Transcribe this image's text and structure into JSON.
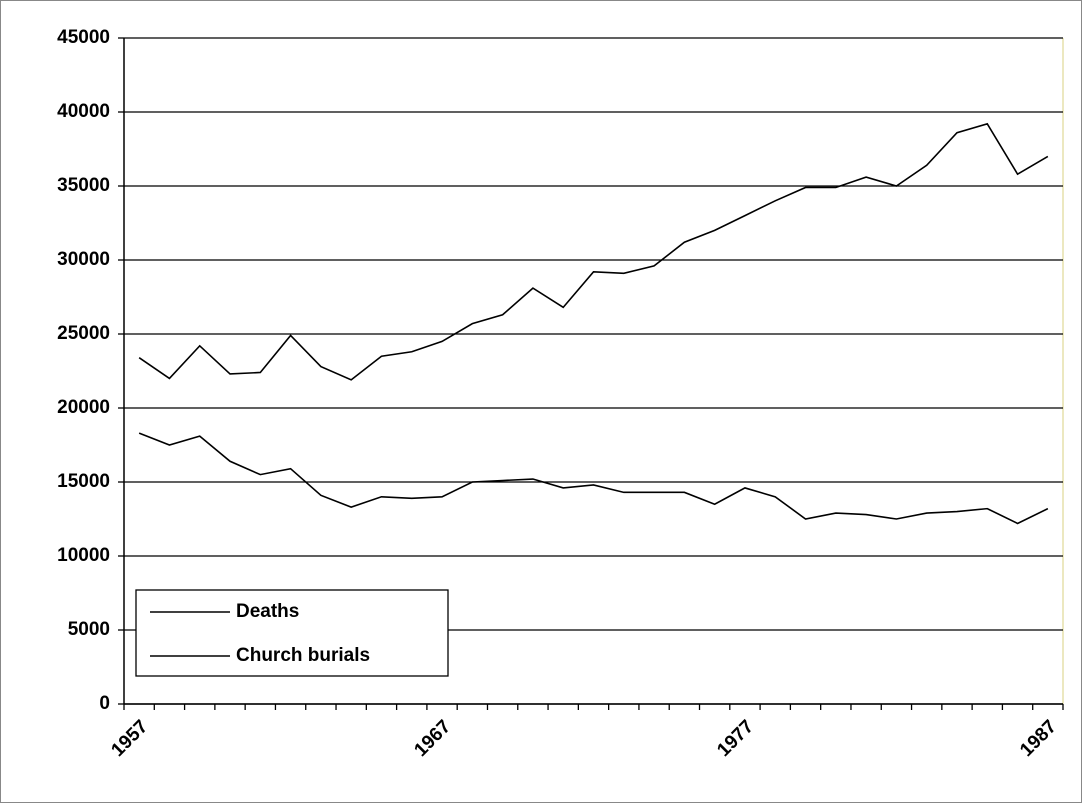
{
  "chart_data": {
    "type": "line",
    "categories": [
      "1957",
      null,
      null,
      null,
      null,
      null,
      null,
      null,
      null,
      null,
      "1967",
      null,
      null,
      null,
      null,
      null,
      null,
      null,
      null,
      null,
      "1977",
      null,
      null,
      null,
      null,
      null,
      null,
      null,
      null,
      null,
      "1987"
    ],
    "series": [
      {
        "name": "Deaths",
        "color": "#000000",
        "values": [
          23400,
          22000,
          24200,
          22300,
          22400,
          24900,
          22800,
          21900,
          23500,
          23800,
          24500,
          25700,
          26300,
          28100,
          26800,
          29200,
          29100,
          29600,
          31200,
          32000,
          33000,
          34000,
          34900,
          34900,
          35600,
          35000,
          36400,
          38600,
          39200,
          35800,
          37000
        ]
      },
      {
        "name": "Church burials",
        "color": "#000000",
        "values": [
          18300,
          17500,
          18100,
          16400,
          15500,
          15900,
          14100,
          13300,
          14000,
          13900,
          14000,
          15000,
          15100,
          15200,
          14600,
          14800,
          14300,
          14300,
          14300,
          13500,
          14600,
          14000,
          12500,
          12900,
          12800,
          12500,
          12900,
          13000,
          13200,
          12200,
          13200
        ]
      }
    ],
    "ylim": [
      0,
      45000
    ],
    "yticks": [
      0,
      5000,
      10000,
      15000,
      20000,
      25000,
      30000,
      35000,
      40000,
      45000
    ],
    "grid": true,
    "legend": "lower-left"
  }
}
